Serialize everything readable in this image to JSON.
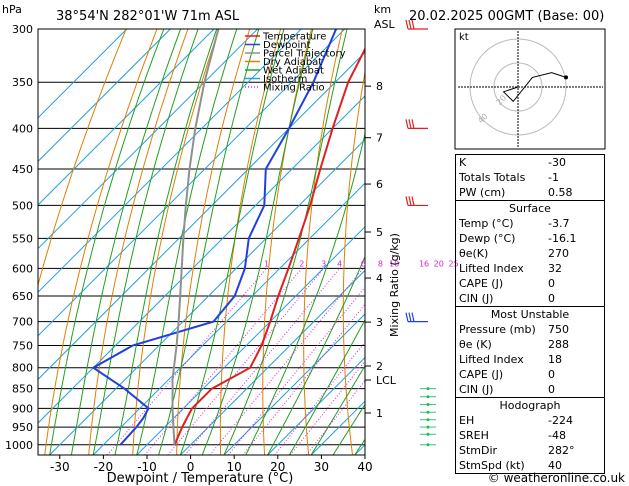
{
  "header": {
    "location": "38°54'N  282°01'W  71m  ASL",
    "datetime": "20.02.2025  00GMT  (Base: 00)",
    "hpa_label": "hPa",
    "km_label": "km",
    "asl_label": "ASL"
  },
  "legend": [
    {
      "label": "Temperature",
      "color": "#e02020"
    },
    {
      "label": "Dewpoint",
      "color": "#2040e0"
    },
    {
      "label": "Parcel Trajectory",
      "color": "#909090"
    },
    {
      "label": "Dry Adiabat",
      "color": "#e08000"
    },
    {
      "label": "Wet Adiabat",
      "color": "#20a020"
    },
    {
      "label": "Isotherm",
      "color": "#20a0e0"
    },
    {
      "label": "Mixing Ratio",
      "color": "#e020e0"
    }
  ],
  "chart_data": {
    "type": "line",
    "title": "",
    "xlabel": "Dewpoint / Temperature (°C)",
    "ylabel": "hPa",
    "secondary_ylabel": "Mixing Ratio (g/kg)",
    "x_ticks": [
      "-30",
      "-20",
      "-10",
      "0",
      "10",
      "20",
      "30",
      "40"
    ],
    "x_tick_values": [
      -30,
      -20,
      -10,
      0,
      10,
      20,
      30,
      40
    ],
    "xlim": [
      -35,
      40
    ],
    "y_ticks": [
      "300",
      "350",
      "400",
      "450",
      "500",
      "550",
      "600",
      "650",
      "700",
      "750",
      "800",
      "850",
      "900",
      "950",
      "1000"
    ],
    "y_tick_values": [
      300,
      350,
      400,
      450,
      500,
      550,
      600,
      650,
      700,
      750,
      800,
      850,
      900,
      950,
      1000
    ],
    "ylim": [
      1030,
      300
    ],
    "y_scale": "log",
    "skew": "45°",
    "km_ticks": [
      "8",
      "7",
      "6",
      "5",
      "4",
      "3",
      "2",
      "LCL",
      "1"
    ],
    "km_tick_pressures": [
      354,
      411,
      470,
      540,
      617,
      701,
      796,
      829,
      912
    ],
    "mixing_ratio_labels": [
      "1",
      "2",
      "3",
      "4",
      "6",
      "8",
      "10",
      "16",
      "20",
      "25"
    ],
    "mixing_ratio_values": [
      1,
      2,
      3,
      4,
      6,
      8,
      10,
      16,
      20,
      25
    ],
    "series": [
      {
        "name": "Temperature",
        "pressure": [
          1000,
          950,
          925,
          900,
          850,
          800,
          750,
          700,
          650,
          600,
          550,
          500,
          450,
          400,
          350,
          300
        ],
        "values": [
          -3.7,
          -6.0,
          -7.0,
          -8.0,
          -8.0,
          -4.0,
          -6.5,
          -10.0,
          -14.0,
          -18.0,
          -22.5,
          -27.5,
          -33.5,
          -40.0,
          -47.0,
          -53.0
        ]
      },
      {
        "name": "Dewpoint",
        "pressure": [
          1000,
          950,
          925,
          900,
          850,
          800,
          750,
          700,
          650,
          600,
          550,
          500,
          450,
          400,
          350,
          300
        ],
        "values": [
          -16.1,
          -16.5,
          -17.0,
          -18.0,
          -28.0,
          -40.0,
          -36.0,
          -23.0,
          -24.0,
          -28.0,
          -34.0,
          -38.0,
          -46.0,
          -50.0,
          -55.0,
          -62.0
        ]
      },
      {
        "name": "Parcel Trajectory",
        "pressure": [
          1000,
          950,
          900,
          850,
          829,
          800,
          750,
          700,
          650,
          600,
          550,
          500,
          450,
          400,
          350,
          300
        ],
        "values": [
          -3.7,
          -8.0,
          -12.5,
          -17.0,
          -19.0,
          -21.5,
          -26.0,
          -31.0,
          -36.5,
          -42.5,
          -49.0,
          -56.0,
          -63.5,
          -71.5,
          -80.0,
          -89.0
        ]
      }
    ],
    "grid": true,
    "legend_position": "top-left"
  },
  "hodograph": {
    "unit_label": "kt",
    "ring_labels": [
      "20",
      "40"
    ],
    "points_u": [
      0,
      -6,
      -2,
      6,
      14,
      20
    ],
    "points_v": [
      0,
      -2,
      -6,
      4,
      6,
      4
    ]
  },
  "indices_box": [
    {
      "label": "K",
      "value": "-30"
    },
    {
      "label": "Totals Totals",
      "value": "-1"
    },
    {
      "label": "PW (cm)",
      "value": "0.58"
    }
  ],
  "surface": {
    "title": "Surface",
    "rows": [
      {
        "label": "Temp (°C)",
        "value": "-3.7"
      },
      {
        "label": "Dewp (°C)",
        "value": "-16.1"
      },
      {
        "label": "θe(K)",
        "value": "270"
      },
      {
        "label": "Lifted Index",
        "value": "32"
      },
      {
        "label": "CAPE (J)",
        "value": "0"
      },
      {
        "label": "CIN (J)",
        "value": "0"
      }
    ]
  },
  "most_unstable": {
    "title": "Most Unstable",
    "rows": [
      {
        "label": "Pressure (mb)",
        "value": "750"
      },
      {
        "label": "θe (K)",
        "value": "288"
      },
      {
        "label": "Lifted Index",
        "value": "18"
      },
      {
        "label": "CAPE (J)",
        "value": "0"
      },
      {
        "label": "CIN (J)",
        "value": "0"
      }
    ]
  },
  "hodograph_box": {
    "title": "Hodograph",
    "rows": [
      {
        "label": "EH",
        "value": "-224"
      },
      {
        "label": "SREH",
        "value": "-48"
      },
      {
        "label": "StmDir",
        "value": "282°"
      },
      {
        "label": "StmSpd (kt)",
        "value": "40"
      }
    ]
  },
  "footer": {
    "credit": "© weatheronline.co.uk"
  }
}
